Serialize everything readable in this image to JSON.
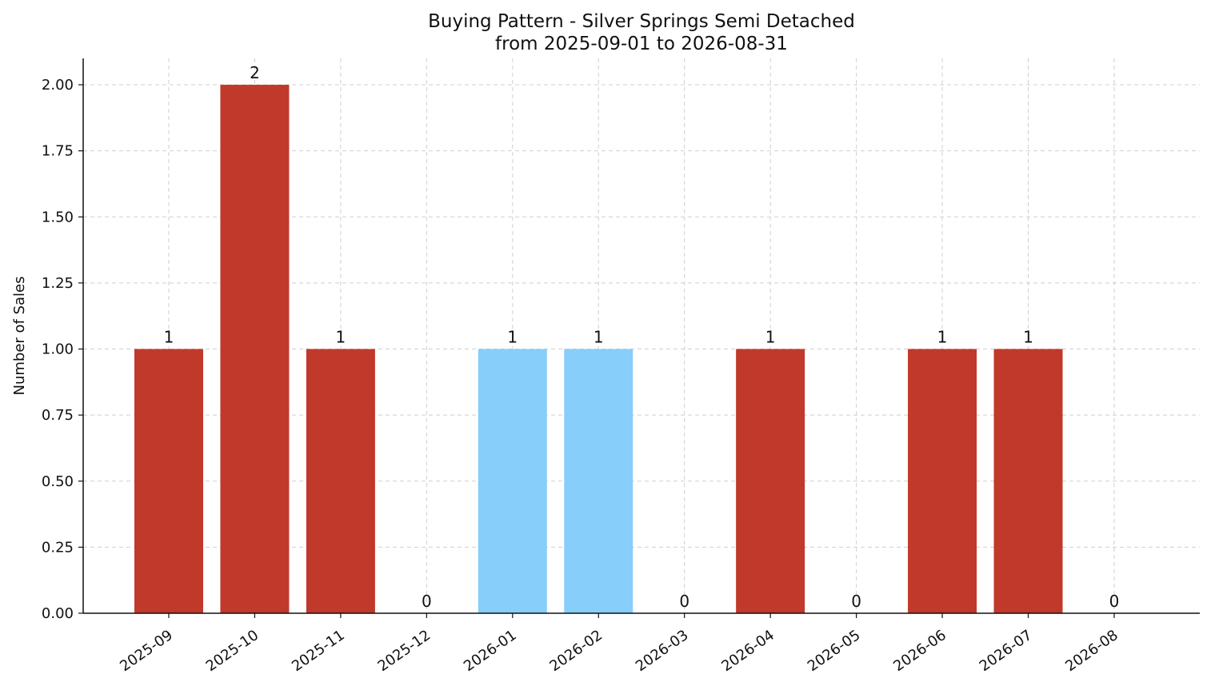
{
  "chart_data": {
    "type": "bar",
    "title": "Buying Pattern - Silver Springs Semi Detached",
    "subtitle": "from 2025-09-01 to 2026-08-31",
    "xlabel": "",
    "ylabel": "Number of Sales",
    "ylim": [
      0,
      2.1
    ],
    "yticks": [
      "0.00",
      "0.25",
      "0.50",
      "0.75",
      "1.00",
      "1.25",
      "1.50",
      "1.75",
      "2.00"
    ],
    "categories": [
      "2025-09",
      "2025-10",
      "2025-11",
      "2025-12",
      "2026-01",
      "2026-02",
      "2026-03",
      "2026-04",
      "2026-05",
      "2026-06",
      "2026-07",
      "2026-08"
    ],
    "values": [
      1,
      2,
      1,
      0,
      1,
      1,
      0,
      1,
      0,
      1,
      1,
      0
    ],
    "value_labels": [
      "1",
      "2",
      "1",
      "0",
      "1",
      "1",
      "0",
      "1",
      "0",
      "1",
      "1",
      "0"
    ],
    "bar_colors": [
      "#c0392b",
      "#c0392b",
      "#c0392b",
      "#c0392b",
      "#87cefa",
      "#87cefa",
      "#c0392b",
      "#c0392b",
      "#c0392b",
      "#c0392b",
      "#c0392b",
      "#c0392b"
    ],
    "grid": true,
    "legend": "none"
  }
}
